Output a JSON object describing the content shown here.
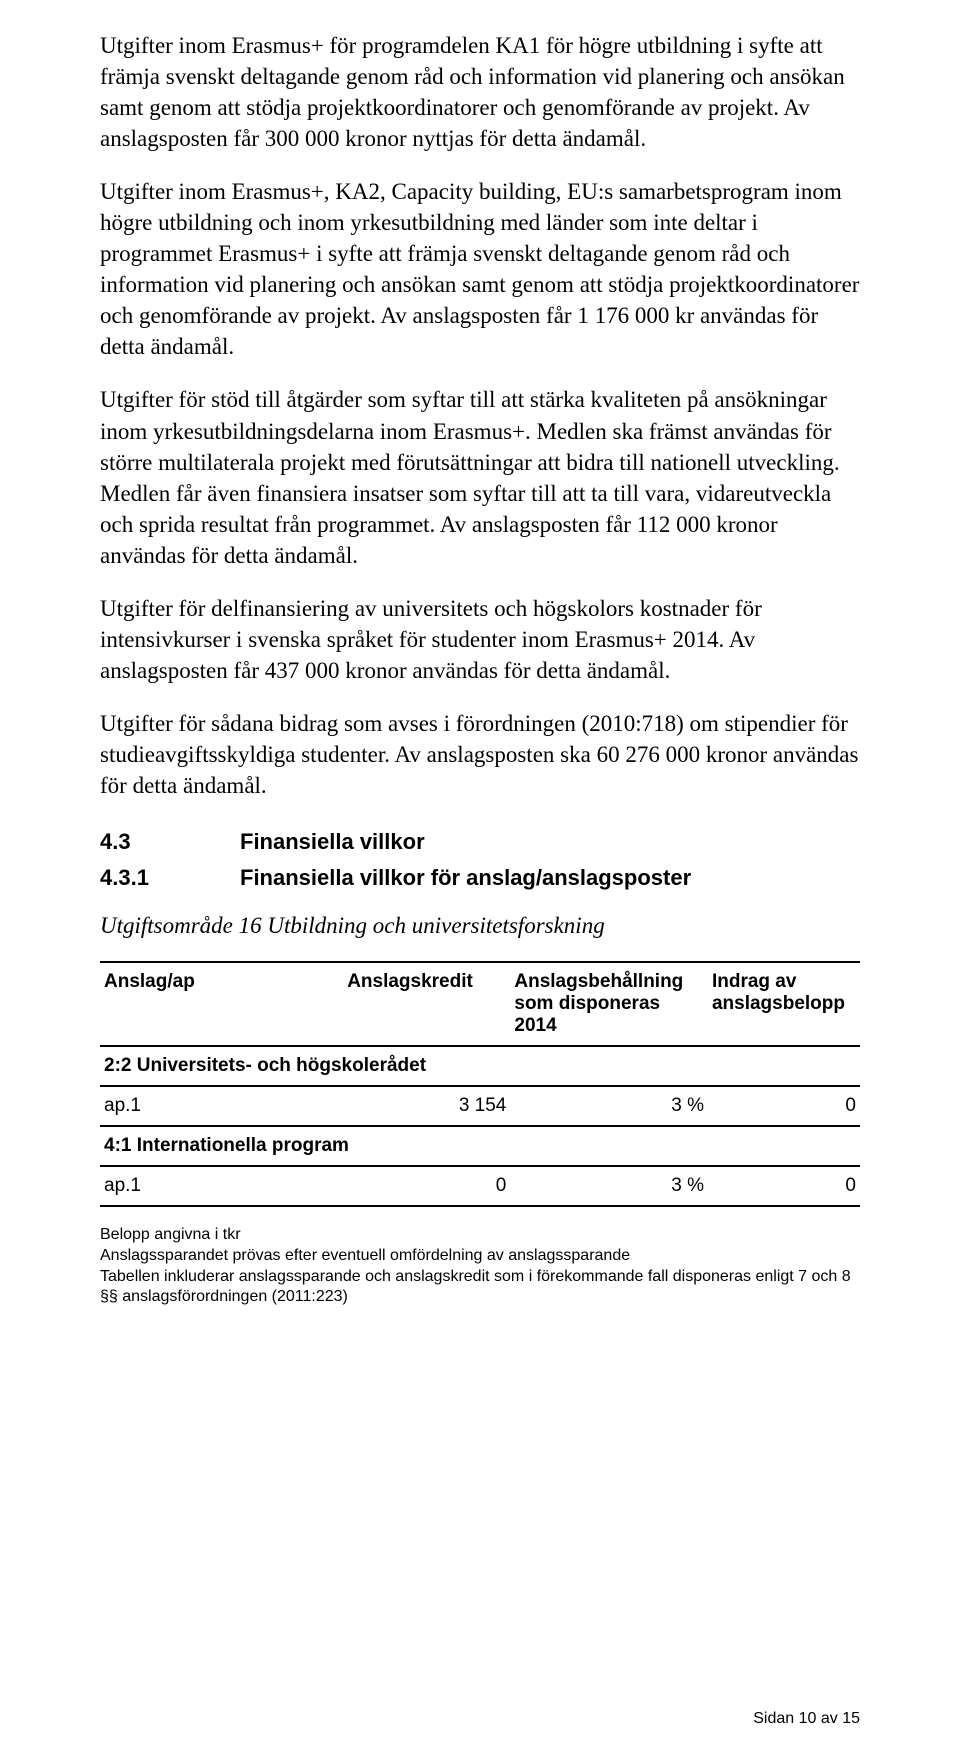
{
  "paragraphs": {
    "p1": "Utgifter inom Erasmus+ för programdelen KA1 för högre utbildning i syfte att främja svenskt deltagande genom råd och information vid planering och ansökan samt  genom att stödja projektkoordinatorer och genomförande av projekt. Av anslagsposten får 300 000 kronor nyttjas för detta ändamål.",
    "p2": "Utgifter inom Erasmus+, KA2, Capacity building, EU:s samarbetsprogram inom högre utbildning  och inom yrkesutbildning med länder som inte deltar i programmet Erasmus+  i syfte  att främja svenskt deltagande genom råd och information vid planering och ansökan samt genom att stödja projektkoordinatorer och genomförande av projekt. Av anslagsposten får 1 176 000 kr användas för detta ändamål.",
    "p3": "Utgifter för stöd till åtgärder som syftar till att stärka kvaliteten på ansökningar inom yrkesutbildningsdelarna inom Erasmus+. Medlen ska främst användas för större multilaterala projekt med förutsättningar att bidra till nationell utveckling. Medlen får även finansiera insatser som syftar till att ta till vara, vidareutveckla och sprida resultat från programmet. Av anslagsposten får 112 000 kronor användas för detta ändamål.",
    "p4": "Utgifter för delfinansiering av universitets och högskolors kostnader för intensivkurser i svenska språket för studenter inom Erasmus+ 2014. Av anslagsposten får 437 000 kronor användas för detta ändamål.",
    "p5": "Utgifter för sådana  bidrag  som avses i förordningen (2010:718) om stipendier för studieavgiftsskyldiga studenter. Av anslagsposten ska  60  276  000  kronor användas för detta ändamål."
  },
  "headings": {
    "h43_num": "4.3",
    "h43_text": "Finansiella villkor",
    "h431_num": "4.3.1",
    "h431_text": "Finansiella villkor för anslag/anslagsposter",
    "italic_sub": "Utgiftsområde 16 Utbildning och universitetsforskning"
  },
  "table": {
    "columns": {
      "c1": "Anslag/ap",
      "c2": "Anslagskredit",
      "c3": "Anslagsbehållning som disponeras 2014",
      "c4": "Indrag av anslagsbelopp"
    },
    "sections": [
      {
        "title": "2:2 Universitets- och högskolerådet",
        "rows": [
          {
            "label": "ap.1",
            "kredit": "3 154",
            "behall": "3 %",
            "indrag": "0"
          }
        ]
      },
      {
        "title": "4:1 Internationella program",
        "rows": [
          {
            "label": "ap.1",
            "kredit": "0",
            "behall": "3 %",
            "indrag": "0"
          }
        ]
      }
    ]
  },
  "notes": {
    "n1": "Belopp angivna i tkr",
    "n2": "Anslagssparandet prövas efter eventuell omfördelning av anslagssparande",
    "n3": "Tabellen inkluderar anslagssparande och anslagskredit som i förekommande fall disponeras enligt 7 och 8 §§ anslagsförordningen (2011:223)"
  },
  "footer": "Sidan 10 av 15"
}
